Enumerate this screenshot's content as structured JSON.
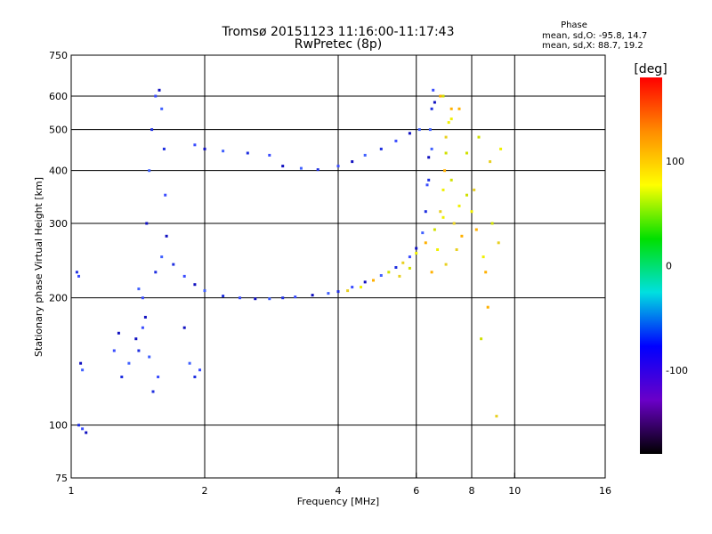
{
  "chart_data": {
    "type": "scatter",
    "title": "Tromsø 20151123 11:16:00-11:17:43",
    "subtitle": "RwPretec (8p)",
    "xlabel": "Frequency [MHz]",
    "ylabel": "Stationary phase Virtual Height [km]",
    "x_scale": "log",
    "y_scale": "log",
    "xlim": [
      1,
      16
    ],
    "ylim": [
      75,
      750
    ],
    "x_ticks": [
      1,
      2,
      4,
      6,
      8,
      10,
      16
    ],
    "y_ticks": [
      75,
      100,
      200,
      300,
      400,
      500,
      600,
      750
    ],
    "grid": true,
    "stats": {
      "heading": "Phase",
      "line_o": "mean, sd,O: -95.8, 14.7",
      "line_x": "mean, sd,X:  88.7, 19.2"
    },
    "colorbar": {
      "label": "[deg]",
      "range": [
        -180,
        180
      ],
      "ticks": [
        100,
        0,
        -100
      ],
      "colors": [
        "#ff0000",
        "#ff8c00",
        "#ffff00",
        "#00e000",
        "#00e0e0",
        "#0000ff",
        "#6a00c8",
        "#000000"
      ]
    },
    "series": [
      {
        "points": [
          [
            1.42,
            150
          ],
          [
            1.45,
            200
          ],
          [
            1.48,
            300
          ],
          [
            1.5,
            400
          ],
          [
            1.52,
            500
          ],
          [
            1.55,
            600
          ],
          [
            1.58,
            620
          ],
          [
            1.6,
            560
          ],
          [
            1.62,
            450
          ],
          [
            1.63,
            350
          ],
          [
            1.64,
            280
          ],
          [
            1.6,
            250
          ],
          [
            1.55,
            230
          ],
          [
            1.45,
            170
          ],
          [
            1.4,
            160
          ],
          [
            1.35,
            140
          ],
          [
            1.3,
            130
          ],
          [
            1.25,
            150
          ],
          [
            1.28,
            165
          ],
          [
            1.5,
            145
          ],
          [
            1.53,
            120
          ],
          [
            1.57,
            130
          ],
          [
            1.47,
            180
          ],
          [
            1.42,
            210
          ],
          [
            1.7,
            240
          ],
          [
            1.8,
            225
          ],
          [
            1.9,
            215
          ],
          [
            2.0,
            208
          ],
          [
            2.2,
            202
          ],
          [
            2.4,
            200
          ],
          [
            2.6,
            199
          ],
          [
            2.8,
            199
          ],
          [
            3.0,
            200
          ],
          [
            3.2,
            201
          ],
          [
            3.5,
            203
          ],
          [
            3.8,
            205
          ],
          [
            4.0,
            207
          ],
          [
            4.3,
            212
          ],
          [
            4.6,
            218
          ],
          [
            5.0,
            226
          ],
          [
            5.4,
            236
          ],
          [
            5.8,
            250
          ],
          [
            6.0,
            262
          ],
          [
            6.2,
            285
          ],
          [
            6.3,
            320
          ],
          [
            6.35,
            370
          ],
          [
            6.4,
            430
          ],
          [
            6.45,
            500
          ],
          [
            6.5,
            560
          ],
          [
            6.55,
            620
          ],
          [
            6.6,
            580
          ],
          [
            6.5,
            450
          ],
          [
            6.4,
            380
          ],
          [
            1.9,
            460
          ],
          [
            2.0,
            450
          ],
          [
            2.2,
            445
          ],
          [
            2.5,
            440
          ],
          [
            2.8,
            435
          ],
          [
            3.0,
            410
          ],
          [
            3.3,
            405
          ],
          [
            3.6,
            402
          ],
          [
            4.0,
            410
          ],
          [
            4.3,
            420
          ],
          [
            4.6,
            435
          ],
          [
            5.0,
            450
          ],
          [
            5.4,
            470
          ],
          [
            5.8,
            490
          ],
          [
            6.1,
            500
          ],
          [
            1.03,
            230
          ],
          [
            1.04,
            225
          ],
          [
            1.05,
            140
          ],
          [
            1.06,
            135
          ],
          [
            1.04,
            100
          ],
          [
            1.06,
            98
          ],
          [
            1.08,
            96
          ],
          [
            1.85,
            140
          ],
          [
            1.9,
            130
          ],
          [
            1.95,
            135
          ],
          [
            1.8,
            170
          ]
        ]
      },
      {
        "points": [
          [
            4.2,
            208
          ],
          [
            4.5,
            212
          ],
          [
            4.8,
            220
          ],
          [
            5.2,
            230
          ],
          [
            5.6,
            242
          ],
          [
            6.0,
            255
          ],
          [
            6.3,
            270
          ],
          [
            6.6,
            290
          ],
          [
            6.8,
            320
          ],
          [
            6.9,
            360
          ],
          [
            6.95,
            400
          ],
          [
            7.0,
            440
          ],
          [
            7.0,
            480
          ],
          [
            7.1,
            520
          ],
          [
            7.2,
            560
          ],
          [
            6.9,
            600
          ],
          [
            7.3,
            300
          ],
          [
            7.5,
            330
          ],
          [
            7.6,
            280
          ],
          [
            7.8,
            350
          ],
          [
            7.4,
            260
          ],
          [
            8.0,
            320
          ],
          [
            8.2,
            290
          ],
          [
            7.2,
            380
          ],
          [
            7.0,
            240
          ],
          [
            6.7,
            260
          ],
          [
            6.5,
            230
          ],
          [
            5.8,
            235
          ],
          [
            5.5,
            225
          ],
          [
            6.9,
            310
          ],
          [
            7.5,
            560
          ],
          [
            8.3,
            480
          ],
          [
            8.8,
            420
          ],
          [
            8.5,
            250
          ],
          [
            8.6,
            230
          ],
          [
            8.9,
            300
          ],
          [
            9.2,
            270
          ],
          [
            9.3,
            450
          ],
          [
            8.7,
            190
          ],
          [
            8.4,
            160
          ],
          [
            9.1,
            105
          ],
          [
            7.2,
            530
          ],
          [
            6.8,
            600
          ],
          [
            7.8,
            440
          ],
          [
            8.1,
            360
          ]
        ]
      }
    ]
  }
}
